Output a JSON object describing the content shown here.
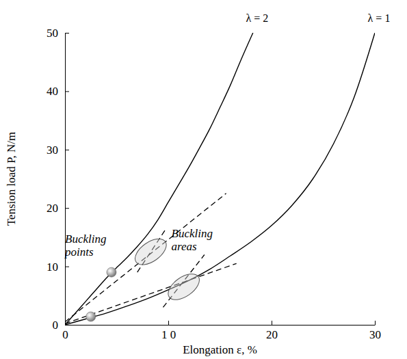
{
  "chart_data": {
    "type": "line",
    "x_label": "Elongation ε, %",
    "y_label": "Tension load P, N/m",
    "xlim": [
      0,
      30
    ],
    "xticks": [
      0,
      {
        "value": 10,
        "label": "1 0"
      },
      20,
      30
    ],
    "ylim": [
      0,
      50
    ],
    "yticks": [
      0,
      10,
      20,
      30,
      40,
      50
    ],
    "grid": false,
    "series": [
      {
        "name": "λ = 2",
        "color": "#000000",
        "line_style": "solid",
        "x": [
          0,
          1,
          2,
          3,
          4,
          5,
          6,
          7,
          8,
          9,
          10,
          11,
          12,
          13,
          14,
          15,
          16,
          17,
          18.2
        ],
        "values": [
          0,
          2,
          4,
          6,
          8,
          9.8,
          11.5,
          13.4,
          15.5,
          18,
          21,
          24,
          27,
          30.2,
          33.5,
          37.2,
          41,
          45.2,
          50
        ]
      },
      {
        "name": "λ = 1",
        "color": "#000000",
        "line_style": "solid",
        "x": [
          0,
          2,
          4,
          6,
          8,
          10,
          12,
          14,
          16,
          18,
          20,
          22,
          24,
          26,
          28,
          30
        ],
        "values": [
          0,
          1,
          2,
          3.2,
          4.5,
          6,
          7.6,
          9.5,
          11.8,
          14.2,
          17,
          20.5,
          25,
          31,
          39,
          50
        ]
      },
      {
        "color": "#000000",
        "line_style": "dashed",
        "x": [
          0,
          15.6
        ],
        "values": [
          0.5,
          22.5
        ]
      },
      {
        "color": "#000000",
        "line_style": "dashed",
        "x": [
          7,
          9.8
        ],
        "values": [
          9,
          16.5
        ]
      },
      {
        "color": "#000000",
        "line_style": "dashed",
        "x": [
          0,
          16.6
        ],
        "values": [
          0.2,
          10.5
        ]
      },
      {
        "color": "#000000",
        "line_style": "dashed",
        "x": [
          9.5,
          13.5
        ],
        "values": [
          3,
          12
        ]
      }
    ],
    "buckling_points": {
      "x": [
        4.5,
        2.5
      ],
      "y": [
        9,
        1.4
      ]
    },
    "buckling_areas": {
      "x": [
        8.3,
        11.5
      ],
      "y": [
        12.5,
        6.5
      ]
    },
    "annotations": [
      {
        "text": "Buckling points",
        "x": 0,
        "y": 14
      },
      {
        "text": "Buckling areas",
        "x": 10.3,
        "y": 15
      }
    ]
  }
}
